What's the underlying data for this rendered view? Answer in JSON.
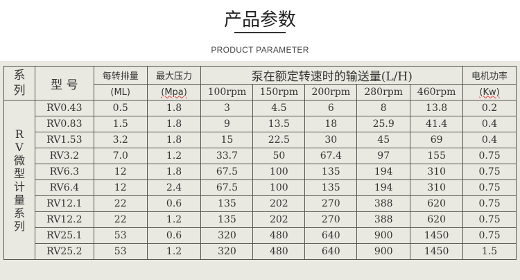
{
  "title": "产品参数",
  "subtitle": "PRODUCT PARAMETER",
  "table": {
    "h_series": "系列",
    "h_model": "型 号",
    "h_disp": "每转排量",
    "h_disp_unit": "(ML)",
    "h_press": "最大压力",
    "h_press_unit": "(Mpa)",
    "h_flow": "泵在额定转速时的输送量(L/H)",
    "h_power": "电机功率",
    "h_power_unit": "(Kw)",
    "rpms": [
      "100rpm",
      "150rpm",
      "200rpm",
      "280rpm",
      "460rpm"
    ],
    "series_name": "RV微型计量系列",
    "rows": [
      [
        "RV0.43",
        "0.5",
        "1.8",
        "3",
        "4.5",
        "6",
        "8",
        "13.8",
        "0.2"
      ],
      [
        "RV0.83",
        "1.5",
        "1.8",
        "9",
        "13.5",
        "18",
        "25.9",
        "41.4",
        "0.4"
      ],
      [
        "RV1.53",
        "3.2",
        "1.8",
        "15",
        "22.5",
        "30",
        "45",
        "69",
        "0.4"
      ],
      [
        "RV3.2",
        "7.0",
        "1.2",
        "33.7",
        "50",
        "67.4",
        "97",
        "155",
        "0.75"
      ],
      [
        "RV6.3",
        "12",
        "1.8",
        "67.5",
        "100",
        "135",
        "194",
        "310",
        "0.75"
      ],
      [
        "RV6.4",
        "12",
        "2.4",
        "67.5",
        "100",
        "135",
        "194",
        "310",
        "0.75"
      ],
      [
        "RV12.1",
        "22",
        "0.6",
        "135",
        "202",
        "270",
        "388",
        "620",
        "0.75"
      ],
      [
        "RV12.2",
        "22",
        "1.2",
        "135",
        "202",
        "270",
        "388",
        "620",
        "0.75"
      ],
      [
        "RV25.1",
        "53",
        "0.6",
        "320",
        "480",
        "640",
        "900",
        "1450",
        "0.75"
      ],
      [
        "RV25.2",
        "53",
        "1.2",
        "320",
        "480",
        "640",
        "900",
        "1450",
        "1.5"
      ]
    ]
  }
}
